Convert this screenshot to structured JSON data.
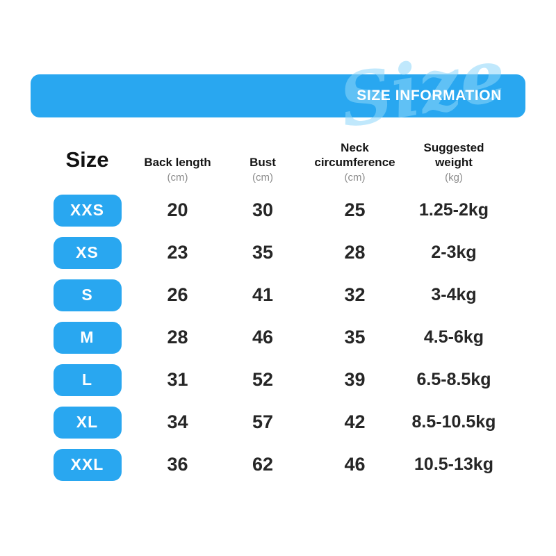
{
  "banner": {
    "title": "SIZE INFORMATION",
    "watermark": "Size"
  },
  "colors": {
    "accent_blue": "#29a7f0",
    "unit_gray": "#8d8d8d",
    "value_text": "#262626"
  },
  "table": {
    "size_header": "Size",
    "columns": [
      {
        "label": "Back length",
        "unit": "(cm)"
      },
      {
        "label": "Bust",
        "unit": "(cm)"
      },
      {
        "label": "Neck circumference",
        "unit": "(cm)"
      },
      {
        "label": "Suggested weight",
        "unit": "(kg)"
      }
    ],
    "rows": [
      {
        "size": "XXS",
        "back_length": "20",
        "bust": "30",
        "neck": "25",
        "weight": "1.25-2kg"
      },
      {
        "size": "XS",
        "back_length": "23",
        "bust": "35",
        "neck": "28",
        "weight": "2-3kg"
      },
      {
        "size": "S",
        "back_length": "26",
        "bust": "41",
        "neck": "32",
        "weight": "3-4kg"
      },
      {
        "size": "M",
        "back_length": "28",
        "bust": "46",
        "neck": "35",
        "weight": "4.5-6kg"
      },
      {
        "size": "L",
        "back_length": "31",
        "bust": "52",
        "neck": "39",
        "weight": "6.5-8.5kg"
      },
      {
        "size": "XL",
        "back_length": "34",
        "bust": "57",
        "neck": "42",
        "weight": "8.5-10.5kg"
      },
      {
        "size": "XXL",
        "back_length": "36",
        "bust": "62",
        "neck": "46",
        "weight": "10.5-13kg"
      }
    ]
  }
}
